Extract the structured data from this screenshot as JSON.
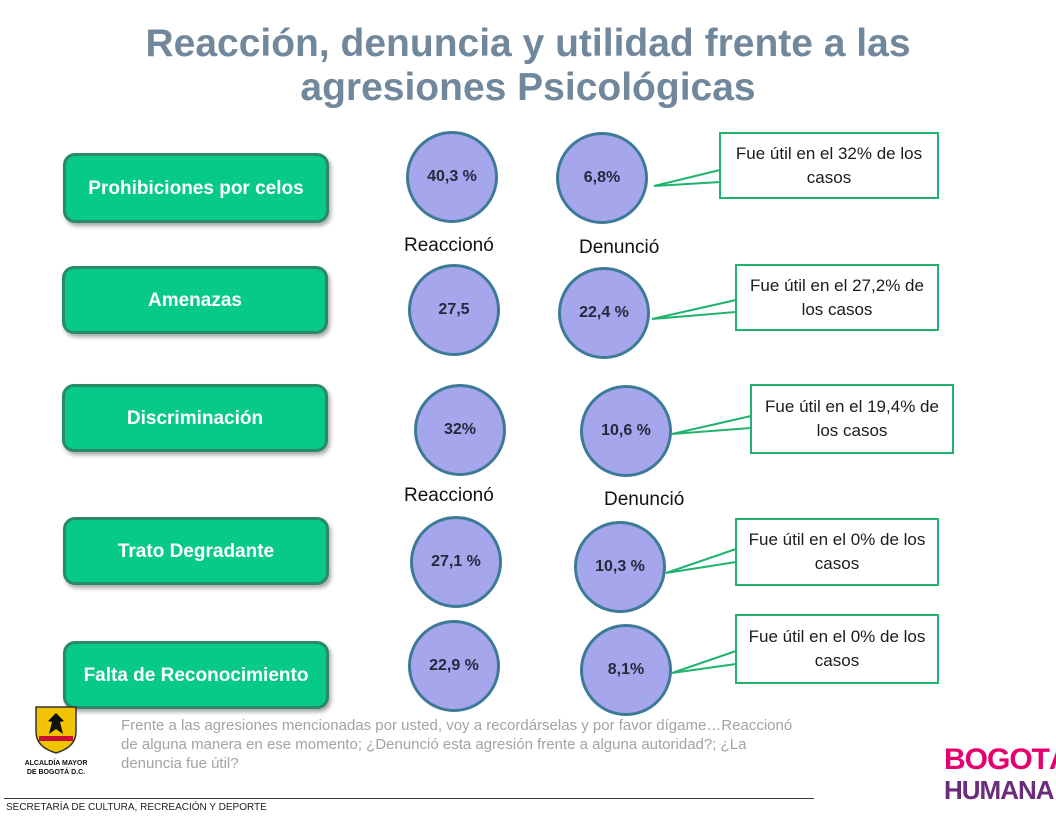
{
  "title": "Reacción, denuncia y utilidad frente a las agresiones Psicológicas",
  "categories": [
    "Prohibiciones por celos",
    "Amenazas",
    "Discriminación",
    "Trato Degradante",
    "Falta de Reconocimiento"
  ],
  "reacciono": [
    "40,3 %",
    "27,5",
    "32%",
    "27,1 %",
    "22,9 %"
  ],
  "denuncio": [
    "6,8%",
    "22,4 %",
    "10,6 %",
    "10,3 %",
    "8,1%"
  ],
  "utilidad": [
    "Fue útil en el  32% de los casos",
    "Fue útil en el 27,2% de los casos",
    "Fue útil en el 19,4% de los casos",
    "Fue útil en el  0% de los casos",
    "Fue útil en el  0% de los casos"
  ],
  "labels": {
    "reacciono": "Reaccionó",
    "denuncio": "Denunció"
  },
  "note": "Frente a las agresiones mencionadas por usted, voy a recordárselas y por favor dígame…Reaccionó de alguna manera en ese momento; ¿Denunció  esta agresión frente a alguna autoridad?; ¿La denuncia fue útil?",
  "footer": "SECRETARÍA DE CULTURA, RECREACIÓN Y DEPORTE",
  "logo_left": {
    "line1": "ALCALDÍA MAYOR",
    "line2": "DE BOGOTÁ D.C."
  },
  "logo_right": {
    "line1": "BOGOTÁ",
    "line2": "HUMANA"
  },
  "colors": {
    "title": "#71879b",
    "category_fill": "#06c98a",
    "circle_fill": "#a6a6ec",
    "callout_border": "#1fb36e"
  }
}
